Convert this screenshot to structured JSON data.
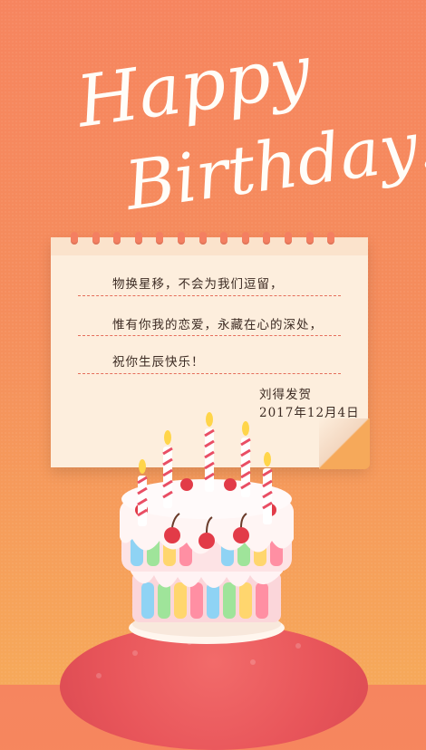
{
  "title": {
    "line1": "Happy",
    "line2": "Birthday!"
  },
  "note": {
    "lines": [
      "物换星移，不会为我们逗留，",
      "惟有你我的恋爱，永藏在心的深处，",
      "祝你生辰快乐！"
    ],
    "signature": "刘得发贺",
    "date": "2017年12月4日"
  },
  "colors": {
    "background_top": "#f6855f",
    "background_bottom": "#f6a95a",
    "paper": "#fdeedd",
    "dashed_line": "#e56e5b",
    "planet": "#e8555a",
    "candle_flame": "#ffd54a"
  },
  "icons": [
    "birthday-cake-icon",
    "candle-icon",
    "cherry-icon",
    "planet-icon"
  ]
}
